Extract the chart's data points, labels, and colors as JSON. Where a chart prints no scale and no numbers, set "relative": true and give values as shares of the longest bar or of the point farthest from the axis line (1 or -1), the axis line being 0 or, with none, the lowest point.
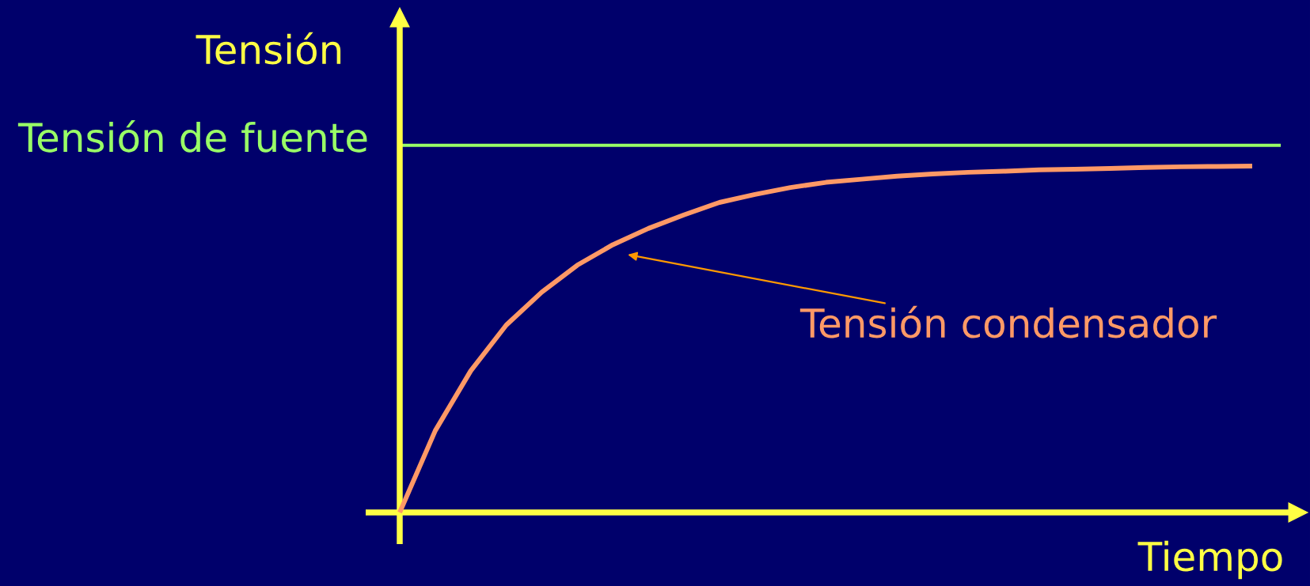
{
  "chart_data": {
    "type": "line",
    "xlabel": "Tiempo",
    "ylabel": "Tensión",
    "relative": true,
    "categories": [
      null,
      null,
      null,
      null,
      null,
      null,
      null,
      null,
      null,
      null,
      null,
      null,
      null,
      null,
      null,
      null,
      null,
      null,
      null,
      null,
      null,
      null,
      null,
      null,
      null
    ],
    "series": [
      {
        "color": "#ff9966",
        "values": [
          0,
          0.236,
          0.409,
          0.541,
          0.636,
          0.714,
          0.773,
          0.82,
          0.859,
          0.895,
          0.918,
          0.938,
          0.953,
          0.962,
          0.971,
          0.977,
          0.982,
          0.985,
          0.989,
          0.991,
          0.993,
          0.996,
          0.998,
          0.999,
          1.0
        ]
      }
    ],
    "ref_lines": [
      {
        "axis": "y",
        "value": 1.06,
        "label": "Tensión de fuente",
        "color": "#99ff66"
      }
    ],
    "annotations": [
      "Tensión condensador"
    ]
  }
}
